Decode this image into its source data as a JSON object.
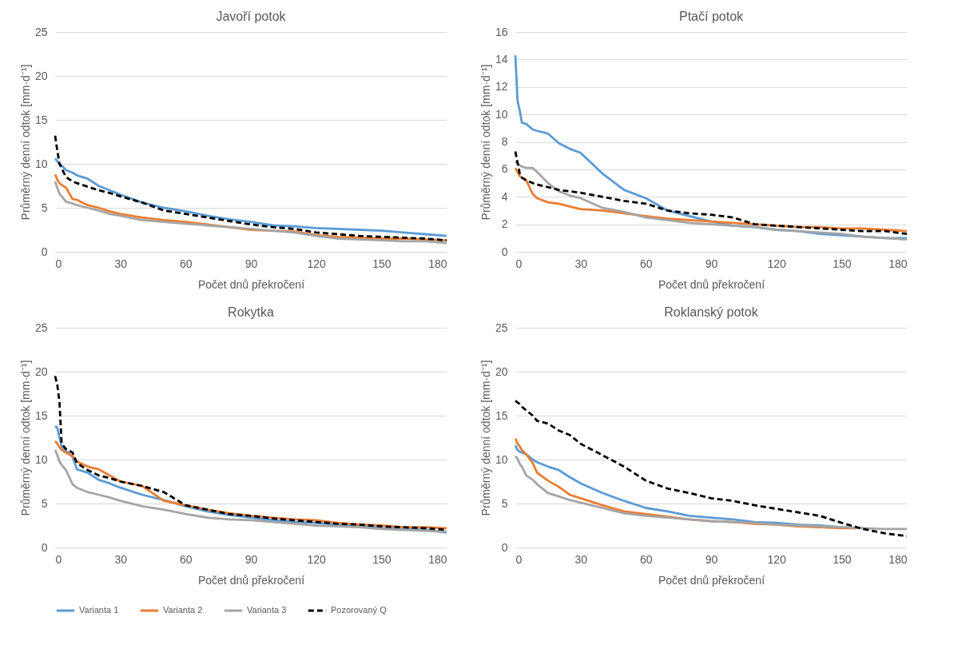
{
  "chart_data": [
    {
      "type": "line",
      "title": "Javoří potok",
      "xlabel": "Počet dnů překročení",
      "ylabel": "Průměrný denní odtok [mm·d⁻¹]",
      "xlim": [
        0,
        180
      ],
      "xticks": [
        0,
        30,
        60,
        90,
        120,
        150,
        180
      ],
      "ylim": [
        0,
        25
      ],
      "yticks": [
        0,
        5,
        10,
        15,
        20,
        25
      ],
      "grid": "y",
      "legend": "bottom",
      "x": [
        0,
        1,
        2,
        3,
        5,
        8,
        10,
        15,
        20,
        25,
        30,
        40,
        50,
        60,
        70,
        80,
        90,
        100,
        110,
        120,
        130,
        140,
        150,
        160,
        170,
        180
      ],
      "series": [
        {
          "name": "Varianta 1",
          "color": "#5b9bd5",
          "line_style": "solid",
          "values": [
            10.6,
            10.3,
            10.0,
            9.8,
            9.3,
            9.0,
            8.7,
            8.3,
            7.5,
            7.0,
            6.5,
            5.6,
            5.0,
            4.6,
            4.1,
            3.7,
            3.4,
            3.0,
            2.9,
            2.7,
            2.6,
            2.5,
            2.4,
            2.2,
            2.0,
            1.8
          ]
        },
        {
          "name": "Varianta 2",
          "color": "#ed7d31",
          "line_style": "solid",
          "values": [
            8.8,
            8.2,
            7.8,
            7.6,
            7.3,
            6.0,
            5.9,
            5.3,
            5.0,
            4.6,
            4.3,
            3.9,
            3.6,
            3.4,
            3.1,
            2.8,
            2.5,
            2.4,
            2.3,
            1.9,
            1.7,
            1.6,
            1.5,
            1.5,
            1.4,
            1.3
          ]
        },
        {
          "name": "Varianta 3",
          "color": "#a5a5a5",
          "line_style": "solid",
          "values": [
            8.0,
            7.3,
            6.6,
            6.3,
            5.7,
            5.5,
            5.3,
            5.0,
            4.7,
            4.3,
            4.1,
            3.6,
            3.4,
            3.2,
            3.0,
            2.8,
            2.6,
            2.4,
            2.2,
            1.8,
            1.5,
            1.4,
            1.3,
            1.2,
            1.2,
            1.0
          ]
        },
        {
          "name": "Pozorovaný Q",
          "color": "#000000",
          "line_style": "dashed",
          "values": [
            13.2,
            11.5,
            10.0,
            9.5,
            8.5,
            8.0,
            7.8,
            7.4,
            7.0,
            6.7,
            6.3,
            5.6,
            4.7,
            4.3,
            3.9,
            3.5,
            3.1,
            2.8,
            2.6,
            2.2,
            2.0,
            1.8,
            1.7,
            1.6,
            1.5,
            1.3
          ]
        }
      ]
    },
    {
      "type": "line",
      "title": "Ptačí potok",
      "xlabel": "Počet dnů překročení",
      "ylabel": "Průměrný denní odtok [mm·d⁻¹]",
      "xlim": [
        0,
        180
      ],
      "xticks": [
        0,
        30,
        60,
        90,
        120,
        150,
        180
      ],
      "ylim": [
        0,
        16
      ],
      "yticks": [
        0,
        2,
        4,
        6,
        8,
        10,
        12,
        14,
        16
      ],
      "grid": "y",
      "legend": "bottom",
      "x": [
        0,
        1,
        2,
        3,
        5,
        8,
        10,
        15,
        20,
        25,
        30,
        40,
        50,
        60,
        70,
        80,
        90,
        100,
        110,
        120,
        130,
        140,
        150,
        160,
        170,
        180
      ],
      "series": [
        {
          "name": "Varianta 1",
          "color": "#5b9bd5",
          "line_style": "solid",
          "values": [
            14.3,
            11.0,
            10.3,
            9.4,
            9.3,
            8.9,
            8.8,
            8.6,
            7.9,
            7.5,
            7.2,
            5.7,
            4.5,
            3.9,
            3.0,
            2.6,
            2.2,
            1.9,
            1.8,
            1.6,
            1.5,
            1.3,
            1.2,
            1.1,
            1.0,
            1.0
          ]
        },
        {
          "name": "Varianta 2",
          "color": "#ed7d31",
          "line_style": "solid",
          "values": [
            6.1,
            5.8,
            5.5,
            5.4,
            5.2,
            4.2,
            3.9,
            3.6,
            3.5,
            3.3,
            3.1,
            3.0,
            2.8,
            2.6,
            2.4,
            2.3,
            2.2,
            2.1,
            2.0,
            1.9,
            1.8,
            1.8,
            1.7,
            1.7,
            1.6,
            1.5
          ]
        },
        {
          "name": "Varianta 3",
          "color": "#a5a5a5",
          "line_style": "solid",
          "values": [
            6.6,
            6.4,
            6.3,
            6.2,
            6.1,
            6.1,
            5.8,
            5.0,
            4.4,
            4.1,
            3.9,
            3.2,
            2.9,
            2.5,
            2.3,
            2.1,
            2.0,
            1.9,
            1.8,
            1.6,
            1.5,
            1.4,
            1.3,
            1.1,
            1.0,
            0.9
          ]
        },
        {
          "name": "Pozorovaný Q",
          "color": "#000000",
          "line_style": "dashed",
          "values": [
            7.3,
            6.5,
            5.7,
            5.4,
            5.2,
            5.0,
            4.9,
            4.7,
            4.5,
            4.4,
            4.3,
            4.0,
            3.7,
            3.5,
            3.0,
            2.8,
            2.7,
            2.5,
            2.0,
            1.9,
            1.8,
            1.7,
            1.6,
            1.5,
            1.5,
            1.3
          ]
        }
      ]
    },
    {
      "type": "line",
      "title": "Rokytka",
      "xlabel": "Počet dnů překročení",
      "ylabel": "Průměrný denní odtok [mm·d⁻¹]",
      "xlim": [
        0,
        180
      ],
      "xticks": [
        0,
        30,
        60,
        90,
        120,
        150,
        180
      ],
      "ylim": [
        0,
        25
      ],
      "yticks": [
        0,
        5,
        10,
        15,
        20,
        25
      ],
      "grid": "y",
      "legend": "bottom",
      "x": [
        0,
        1,
        2,
        3,
        5,
        8,
        10,
        15,
        20,
        25,
        30,
        40,
        50,
        60,
        70,
        80,
        90,
        100,
        110,
        120,
        130,
        140,
        150,
        160,
        170,
        180
      ],
      "series": [
        {
          "name": "Varianta 1",
          "color": "#5b9bd5",
          "line_style": "solid",
          "values": [
            13.8,
            13.6,
            12.5,
            11.5,
            11.0,
            10.3,
            8.9,
            8.5,
            7.7,
            7.3,
            6.8,
            6.0,
            5.4,
            4.7,
            4.1,
            3.7,
            3.4,
            3.1,
            2.9,
            2.8,
            2.6,
            2.4,
            2.2,
            2.1,
            2.0,
            1.7
          ]
        },
        {
          "name": "Varianta 2",
          "color": "#ed7d31",
          "line_style": "solid",
          "values": [
            12.1,
            11.8,
            11.4,
            11.1,
            10.8,
            10.4,
            9.8,
            9.2,
            8.9,
            8.2,
            7.5,
            7.0,
            5.3,
            4.8,
            4.3,
            3.9,
            3.6,
            3.4,
            3.2,
            3.1,
            2.8,
            2.6,
            2.5,
            2.3,
            2.3,
            2.2
          ]
        },
        {
          "name": "Varianta 3",
          "color": "#a5a5a5",
          "line_style": "solid",
          "values": [
            11.1,
            10.5,
            9.8,
            9.4,
            8.8,
            7.2,
            6.8,
            6.3,
            6.0,
            5.7,
            5.3,
            4.7,
            4.3,
            3.8,
            3.4,
            3.2,
            3.1,
            2.9,
            2.7,
            2.5,
            2.4,
            2.3,
            2.1,
            2.0,
            1.9,
            1.8
          ]
        },
        {
          "name": "Pozorovaný Q",
          "color": "#000000",
          "line_style": "dashed",
          "values": [
            19.5,
            18.5,
            16.5,
            11.8,
            11.2,
            10.8,
            9.6,
            8.8,
            8.2,
            7.9,
            7.5,
            7.0,
            6.3,
            4.8,
            4.3,
            3.8,
            3.6,
            3.3,
            3.1,
            2.9,
            2.7,
            2.6,
            2.4,
            2.3,
            2.2,
            2.0
          ]
        }
      ]
    },
    {
      "type": "line",
      "title": "Roklanský potok",
      "xlabel": "Počet dnů překročení",
      "ylabel": "Průměrný denní odtok [mm·d⁻¹]",
      "xlim": [
        0,
        180
      ],
      "xticks": [
        0,
        30,
        60,
        90,
        120,
        150,
        180
      ],
      "ylim": [
        0,
        25
      ],
      "yticks": [
        0,
        5,
        10,
        15,
        20,
        25
      ],
      "grid": "y",
      "legend": "bottom",
      "x": [
        0,
        1,
        2,
        3,
        5,
        8,
        10,
        15,
        20,
        25,
        30,
        40,
        50,
        60,
        70,
        80,
        90,
        100,
        110,
        120,
        130,
        140,
        150,
        160,
        170,
        180
      ],
      "series": [
        {
          "name": "Varianta 1",
          "color": "#5b9bd5",
          "line_style": "solid",
          "values": [
            11.6,
            11.1,
            10.9,
            10.8,
            10.6,
            10.0,
            9.7,
            9.2,
            8.8,
            8.0,
            7.3,
            6.2,
            5.3,
            4.5,
            4.1,
            3.6,
            3.4,
            3.2,
            2.9,
            2.8,
            2.6,
            2.5,
            2.3,
            2.2,
            null,
            null
          ]
        },
        {
          "name": "Varianta 2",
          "color": "#ed7d31",
          "line_style": "solid",
          "values": [
            12.4,
            11.8,
            11.5,
            11.1,
            10.6,
            9.6,
            8.5,
            7.6,
            6.9,
            6.0,
            5.6,
            4.8,
            4.1,
            3.8,
            3.5,
            3.2,
            3.0,
            2.9,
            2.7,
            2.6,
            2.4,
            2.3,
            2.2,
            2.2,
            null,
            null
          ]
        },
        {
          "name": "Varianta 3",
          "color": "#a5a5a5",
          "line_style": "solid",
          "values": [
            10.4,
            10.1,
            9.5,
            9.2,
            8.2,
            7.7,
            7.2,
            6.2,
            5.8,
            5.4,
            5.1,
            4.5,
            3.9,
            3.6,
            3.4,
            3.2,
            3.0,
            2.9,
            2.8,
            2.6,
            2.5,
            2.4,
            2.3,
            2.2,
            2.1,
            2.1
          ]
        },
        {
          "name": "Pozorovaný Q",
          "color": "#000000",
          "line_style": "dashed",
          "values": [
            16.7,
            16.5,
            16.3,
            16.0,
            15.6,
            15.0,
            14.4,
            14.1,
            13.3,
            12.8,
            11.8,
            10.5,
            9.2,
            7.6,
            6.7,
            6.2,
            5.6,
            5.3,
            4.8,
            4.4,
            4.0,
            3.6,
            2.8,
            2.1,
            1.6,
            1.3
          ]
        }
      ]
    }
  ]
}
